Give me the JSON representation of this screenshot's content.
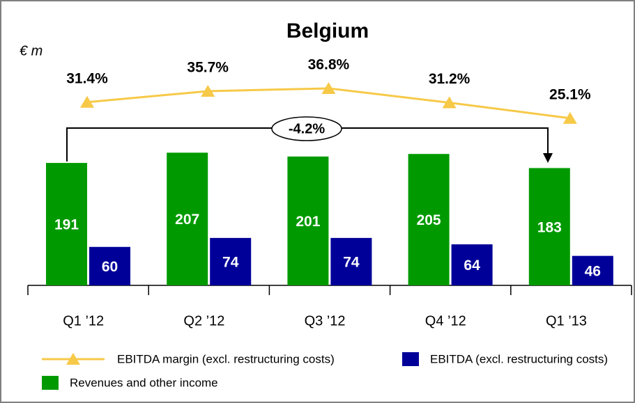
{
  "chart_data": {
    "type": "bar",
    "title": "Belgium",
    "unit_label": "€ m",
    "categories": [
      "Q1 ’12",
      "Q2 ’12",
      "Q3 ’12",
      "Q4 ’12",
      "Q1 ’13"
    ],
    "series": [
      {
        "name": "EBITDA margin (excl. restructuring costs)",
        "type": "line",
        "color": "#f7c948",
        "values": [
          31.4,
          35.7,
          36.8,
          31.2,
          25.1
        ],
        "value_labels": [
          "31.4%",
          "35.7%",
          "36.8%",
          "31.2%",
          "25.1%"
        ]
      },
      {
        "name": "Revenues and other income",
        "type": "bar",
        "color": "#009a00",
        "values": [
          191,
          207,
          201,
          205,
          183
        ]
      },
      {
        "name": "EBITDA (excl. restructuring costs)",
        "type": "bar",
        "color": "#000099",
        "values": [
          60,
          74,
          74,
          64,
          46
        ]
      }
    ],
    "annotation": "-4.2%"
  }
}
